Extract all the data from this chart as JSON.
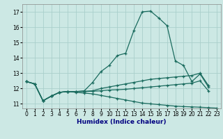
{
  "xlabel": "Humidex (Indice chaleur)",
  "ylabel": "",
  "bg_color": "#cce8e4",
  "grid_color": "#aacfcb",
  "line_color": "#1a6b5e",
  "xlim": [
    -0.5,
    23.5
  ],
  "ylim": [
    10.7,
    17.5
  ],
  "xticks": [
    0,
    1,
    2,
    3,
    4,
    5,
    6,
    7,
    8,
    9,
    10,
    11,
    12,
    13,
    14,
    15,
    16,
    17,
    18,
    19,
    20,
    21,
    22,
    23
  ],
  "yticks": [
    11,
    12,
    13,
    14,
    15,
    16,
    17
  ],
  "line1_y": [
    12.45,
    12.3,
    11.2,
    11.5,
    11.75,
    11.8,
    11.8,
    11.85,
    12.4,
    13.1,
    13.5,
    14.15,
    14.3,
    15.8,
    17.0,
    17.05,
    16.6,
    16.1,
    13.8,
    13.5,
    12.45,
    12.95,
    12.1,
    null
  ],
  "line2_y": [
    12.45,
    12.3,
    11.2,
    11.5,
    11.75,
    11.8,
    11.8,
    11.82,
    11.85,
    12.0,
    12.1,
    12.2,
    12.3,
    12.4,
    12.5,
    12.6,
    12.65,
    12.7,
    12.75,
    12.8,
    12.85,
    13.0,
    12.2,
    null
  ],
  "line3_y": [
    12.45,
    12.3,
    11.2,
    11.5,
    11.75,
    11.8,
    11.8,
    11.8,
    11.82,
    11.85,
    11.9,
    11.92,
    11.95,
    12.0,
    12.05,
    12.1,
    12.15,
    12.2,
    12.25,
    12.3,
    12.35,
    12.5,
    11.85,
    null
  ],
  "line4_y": [
    12.45,
    12.3,
    11.2,
    11.5,
    11.75,
    11.8,
    11.75,
    11.7,
    11.65,
    11.55,
    11.45,
    11.35,
    11.25,
    11.15,
    11.05,
    11.0,
    10.95,
    10.9,
    10.85,
    10.82,
    10.8,
    10.78,
    10.75,
    10.72
  ]
}
